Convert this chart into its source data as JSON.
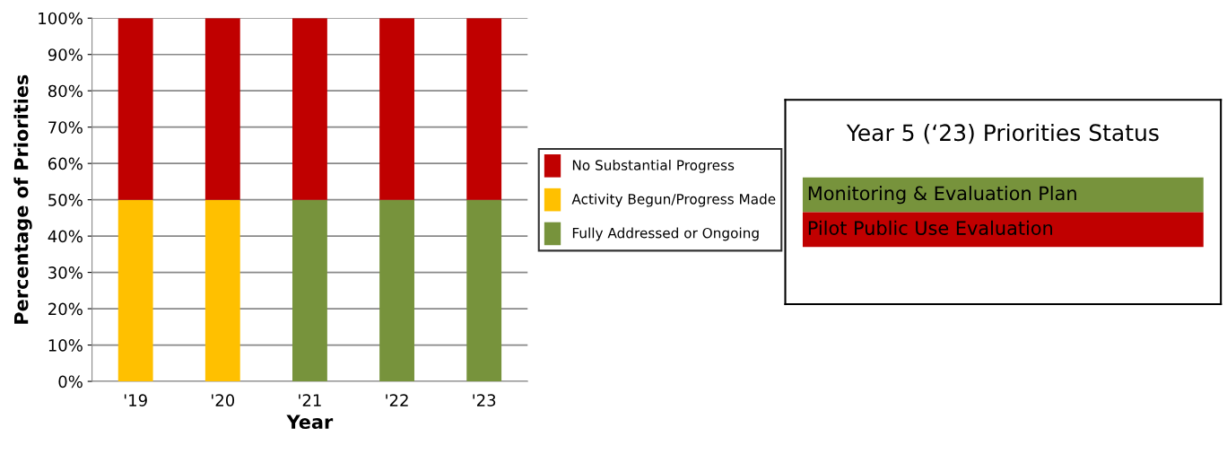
{
  "chart_data": [
    {
      "type": "bar",
      "stacked": true,
      "xlabel": "Year",
      "ylabel": "Percentage of Priorities",
      "categories": [
        "'19",
        "'20",
        "'21",
        "'22",
        "'23"
      ],
      "series": [
        {
          "name": "Fully Addressed or Ongoing",
          "color": "#77933c",
          "values": [
            0,
            0,
            50,
            50,
            50
          ]
        },
        {
          "name": "Activity Begun/Progress Made",
          "color": "#ffc000",
          "values": [
            50,
            50,
            0,
            0,
            0
          ]
        },
        {
          "name": "No Substantial Progress",
          "color": "#c00000",
          "values": [
            50,
            50,
            50,
            50,
            50
          ]
        }
      ],
      "ylim": [
        0,
        100
      ],
      "yticks": [
        {
          "value": 0,
          "label": "0%"
        },
        {
          "value": 10,
          "label": "10%"
        },
        {
          "value": 20,
          "label": "20%"
        },
        {
          "value": 30,
          "label": "30%"
        },
        {
          "value": 40,
          "label": "40%"
        },
        {
          "value": 50,
          "label": "50%"
        },
        {
          "value": 60,
          "label": "60%"
        },
        {
          "value": 70,
          "label": "70%"
        },
        {
          "value": 80,
          "label": "80%"
        },
        {
          "value": 90,
          "label": "90%"
        },
        {
          "value": 100,
          "label": "100%"
        }
      ],
      "grid": "y",
      "legend": "right"
    },
    {
      "type": "other",
      "title": "Year 5 (‘23) Priorities Status",
      "categories": [
        "Monitoring & Evaluation Plan",
        "Pilot Public Use Evaluation"
      ],
      "colors": [
        "#77933c",
        "#c00000"
      ]
    }
  ]
}
